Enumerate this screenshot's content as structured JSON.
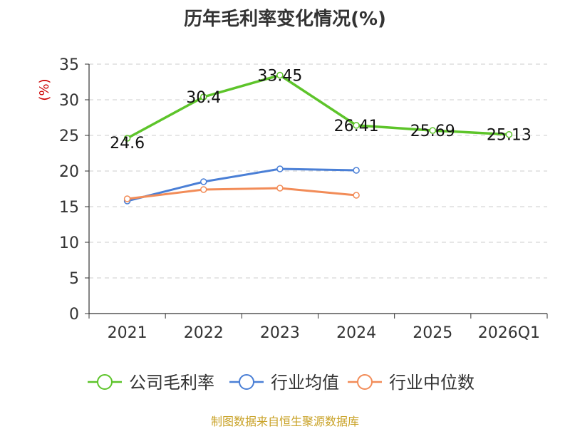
{
  "chart_data": {
    "type": "line",
    "title": "历年毛利率变化情况(%)",
    "ylabel": "(%)",
    "categories": [
      "2021",
      "2022",
      "2023",
      "2024",
      "2025",
      "2026Q1"
    ],
    "ylim": [
      0,
      35
    ],
    "yticks": [
      "0",
      "5",
      "10",
      "15",
      "20",
      "25",
      "30",
      "35"
    ],
    "grid": true,
    "legend_position": "bottom",
    "series": [
      {
        "name": "公司毛利率",
        "color": "#5dc42a",
        "values": [
          24.6,
          30.4,
          33.45,
          26.41,
          25.69,
          25.13
        ],
        "labels": [
          "24.6",
          "30.4",
          "33.45",
          "26.41",
          "25.69",
          "25.13"
        ]
      },
      {
        "name": "行业均值",
        "color": "#4a7fd6",
        "values": [
          15.8,
          18.5,
          20.3,
          20.1,
          null,
          null
        ]
      },
      {
        "name": "行业中位数",
        "color": "#f28c58",
        "values": [
          16.1,
          17.4,
          17.6,
          16.6,
          null,
          null
        ]
      }
    ]
  },
  "footer": {
    "source": "制图数据来自恒生聚源数据库"
  }
}
